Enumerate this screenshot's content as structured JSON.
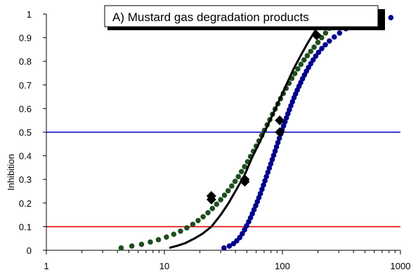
{
  "chart_data": {
    "type": "scatter",
    "title": "A) Mustard gas degradation products",
    "xlabel": "",
    "ylabel": "Inhibition",
    "x_scale": "log",
    "xlim": [
      1,
      1000
    ],
    "ylim": [
      0,
      1
    ],
    "x_tick_labels": [
      "1",
      "10",
      "100",
      "1000"
    ],
    "y_tick_labels": [
      "0",
      "0.1",
      "0.2",
      "0.3",
      "0.4",
      "0.5",
      "0.6",
      "0.7",
      "0.8",
      "0.9",
      "1"
    ],
    "grid": false,
    "reference_lines": [
      {
        "y": 0.5,
        "color": "#0000cc"
      },
      {
        "y": 0.1,
        "color": "#e60000"
      }
    ],
    "series": [
      {
        "color": "#1f4d1f",
        "marker": "circle",
        "x": [
          4.3,
          5.3,
          6.4,
          7.6,
          8.9,
          10.4,
          12.0,
          13.7,
          15.5,
          17.4,
          19.3,
          21.3,
          23.4,
          25.5,
          27.7,
          30.0,
          32.3,
          34.7,
          37.2,
          39.7,
          42.3,
          45.0,
          47.8,
          50.7,
          53.7,
          56.8,
          60.0,
          63.3,
          66.8,
          70.4,
          74.2,
          78.2,
          82.4,
          86.8,
          91.5,
          96.5,
          101.8,
          107.5,
          113.6,
          120.2,
          127.3,
          135.0,
          143.4,
          152.5,
          162.5,
          173.5,
          185.6,
          200.0,
          215.0,
          232.0,
          250.0
        ],
        "y": [
          0.01,
          0.018,
          0.025,
          0.035,
          0.045,
          0.056,
          0.068,
          0.081,
          0.095,
          0.11,
          0.126,
          0.142,
          0.159,
          0.177,
          0.195,
          0.214,
          0.233,
          0.252,
          0.272,
          0.292,
          0.312,
          0.333,
          0.354,
          0.375,
          0.397,
          0.419,
          0.441,
          0.463,
          0.486,
          0.508,
          0.531,
          0.553,
          0.576,
          0.598,
          0.62,
          0.642,
          0.664,
          0.686,
          0.707,
          0.728,
          0.748,
          0.768,
          0.787,
          0.806,
          0.824,
          0.842,
          0.86,
          0.88,
          0.9,
          0.92,
          0.94
        ]
      },
      {
        "color": "#00008b",
        "marker": "circle",
        "x": [
          32.0,
          35.5,
          38.5,
          41.0,
          43.5,
          45.7,
          47.8,
          49.8,
          51.8,
          53.7,
          55.6,
          57.5,
          59.4,
          61.3,
          63.2,
          65.1,
          67.1,
          69.1,
          71.1,
          73.2,
          75.3,
          77.5,
          79.7,
          82.0,
          84.3,
          86.7,
          89.1,
          91.6,
          94.2,
          96.8,
          99.5,
          102.3,
          105.2,
          108.2,
          111.3,
          114.6,
          118.0,
          121.6,
          125.4,
          129.4,
          133.6,
          138.1,
          142.9,
          148.1,
          153.7,
          159.8,
          166.5,
          173.9,
          182.2,
          191.6,
          202.5,
          215.5,
          231.0,
          250.0,
          275.0,
          305.0,
          345.0,
          400.0,
          830.0
        ],
        "y": [
          0.01,
          0.018,
          0.028,
          0.04,
          0.054,
          0.07,
          0.087,
          0.104,
          0.121,
          0.138,
          0.155,
          0.172,
          0.189,
          0.206,
          0.223,
          0.24,
          0.258,
          0.276,
          0.294,
          0.312,
          0.33,
          0.348,
          0.366,
          0.384,
          0.402,
          0.42,
          0.438,
          0.456,
          0.474,
          0.492,
          0.51,
          0.527,
          0.544,
          0.561,
          0.578,
          0.595,
          0.612,
          0.629,
          0.646,
          0.662,
          0.678,
          0.694,
          0.71,
          0.726,
          0.742,
          0.758,
          0.774,
          0.79,
          0.806,
          0.822,
          0.838,
          0.854,
          0.87,
          0.886,
          0.903,
          0.92,
          0.938,
          0.955,
          0.985
        ]
      },
      {
        "color": "#000000",
        "marker": "diamond",
        "x": [
          25,
          25,
          48,
          48,
          95,
          95,
          195
        ],
        "y": [
          0.215,
          0.23,
          0.29,
          0.3,
          0.5,
          0.55,
          0.91
        ]
      },
      {
        "color": "#000000",
        "marker": "none",
        "line": true,
        "x": [
          11,
          13,
          15,
          18,
          21,
          25,
          30,
          35,
          40,
          48,
          55,
          63,
          72,
          82,
          95,
          110,
          125,
          145,
          165,
          190,
          220,
          260
        ],
        "y": [
          0.01,
          0.02,
          0.03,
          0.05,
          0.07,
          0.1,
          0.15,
          0.2,
          0.25,
          0.32,
          0.39,
          0.45,
          0.51,
          0.57,
          0.64,
          0.71,
          0.77,
          0.83,
          0.88,
          0.93,
          0.97,
          1.0
        ]
      }
    ]
  }
}
